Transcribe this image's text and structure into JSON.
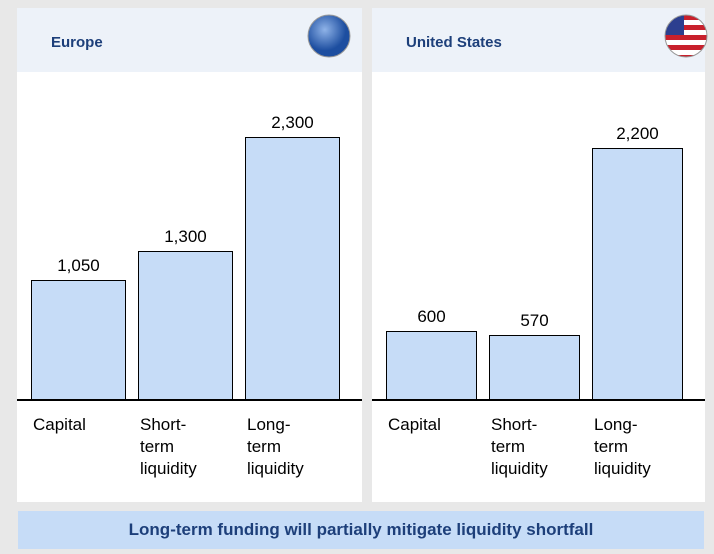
{
  "chart_data": [
    {
      "type": "bar",
      "title": "Europe",
      "categories": [
        "Capital",
        "Short-term liquidity",
        "Long-term liquidity"
      ],
      "values": [
        1050,
        1300,
        2300
      ],
      "value_labels": [
        "1,050",
        "1,300",
        "2,300"
      ],
      "color": "#c6dcf7",
      "ylim": [
        0,
        2300
      ]
    },
    {
      "type": "bar",
      "title": "United States",
      "categories": [
        "Capital",
        "Short-term liquidity",
        "Long-term liquidity"
      ],
      "values": [
        600,
        570,
        2200
      ],
      "value_labels": [
        "600",
        "570",
        "2,200"
      ],
      "color": "#c6dcf7",
      "ylim": [
        0,
        2300
      ]
    }
  ],
  "footer": "Long-term funding will partially mitigate liquidity shortfall"
}
